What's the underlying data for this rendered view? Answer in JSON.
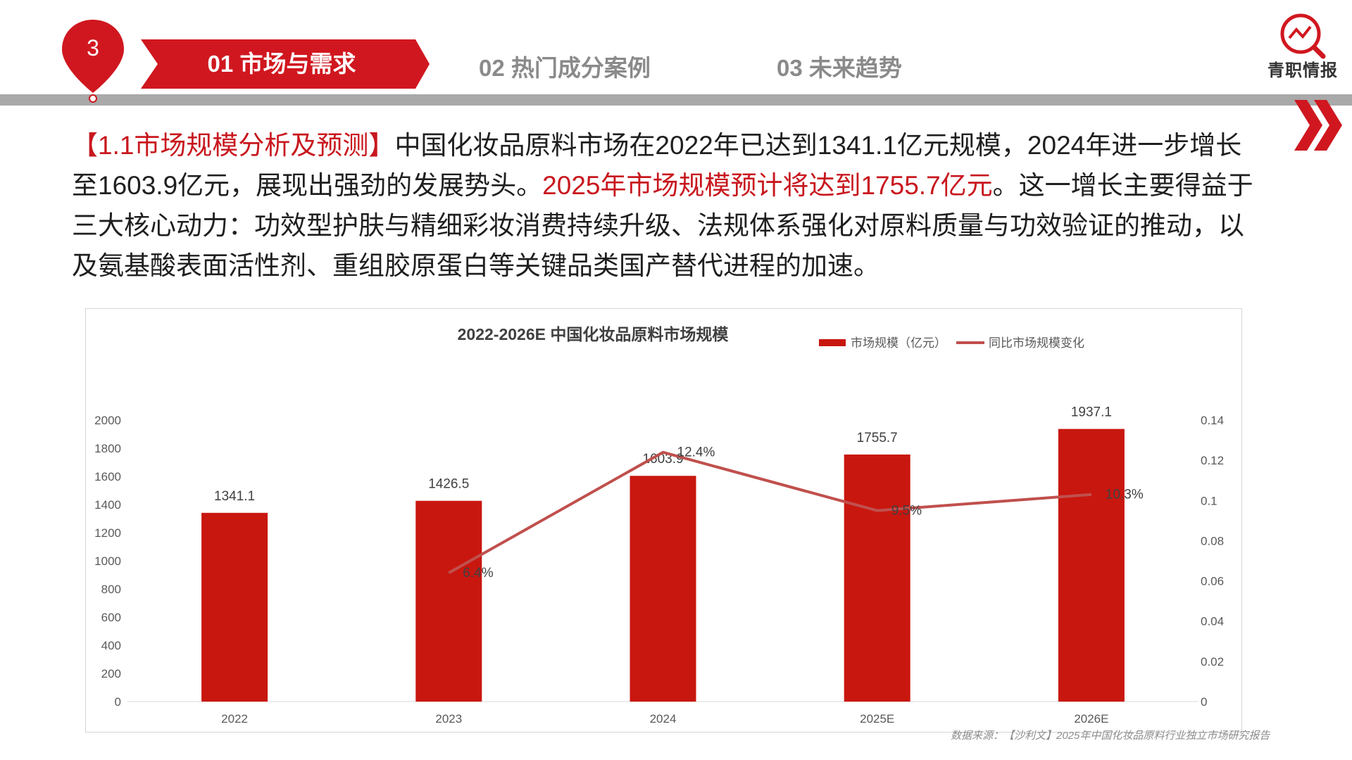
{
  "header": {
    "section_number": "3",
    "tabs": [
      {
        "num": "01",
        "label": "市场与需求",
        "active": true
      },
      {
        "num": "02",
        "label": "热门成分案例",
        "active": false
      },
      {
        "num": "03",
        "label": "未来趋势",
        "active": false
      }
    ],
    "logo_text": "青职情报",
    "accent_color": "#d0171f"
  },
  "intro": {
    "heading": "【1.1市场规模分析及预测】",
    "text_1": "中国化妆品原料市场在2022年已达到1341.1亿元规模，2024年进一步增长至1603.9亿元，展现出强劲的发展势头。",
    "highlight": "2025年市场规模预计将达到1755.7亿元",
    "text_2": "。这一增长主要得益于三大核心动力：功效型护肤与精细彩妆消费持续升级、法规体系强化对原料质量与功效验证的推动，以及氨基酸表面活性剂、重组胶原蛋白等关键品类国产替代进程的加速。"
  },
  "chart_data": {
    "type": "bar",
    "title": "2022-2026E 中国化妆品原料市场规模",
    "categories": [
      "2022",
      "2023",
      "2024",
      "2025E",
      "2026E"
    ],
    "series": [
      {
        "name": "市场规模（亿元）",
        "type": "bar",
        "axis": "left",
        "values": [
          1341.1,
          1426.5,
          1603.9,
          1755.7,
          1937.1
        ],
        "labels": [
          "1341.1",
          "1426.5",
          "1603.9",
          "1755.7",
          "1937.1"
        ],
        "color": "#c8170f"
      },
      {
        "name": "同比市场规模变化",
        "type": "line",
        "axis": "right",
        "values": [
          null,
          0.064,
          0.124,
          0.095,
          0.103
        ],
        "labels": [
          "",
          "6.4%",
          "12.4%",
          "9.5%",
          "10.3%"
        ],
        "color": "#c0504d"
      }
    ],
    "ylim_left": [
      0,
      2000
    ],
    "yticks_left": [
      "0",
      "200",
      "400",
      "600",
      "800",
      "1000",
      "1200",
      "1400",
      "1600",
      "1800",
      "2000"
    ],
    "ylim_right": [
      0,
      0.14
    ],
    "yticks_right": [
      "0",
      "0.02",
      "0.04",
      "0.06",
      "0.08",
      "0.1",
      "0.12",
      "0.14"
    ],
    "legend_position": "top-right",
    "grid": false
  },
  "source": "数据来源：【沙利文】2025年中国化妆品原料行业独立市场研究报告"
}
